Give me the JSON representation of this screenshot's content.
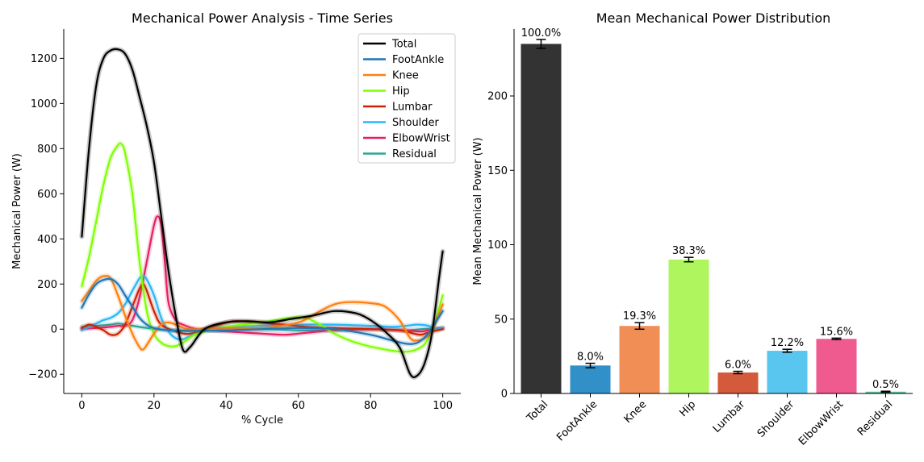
{
  "chart_data": [
    {
      "type": "line",
      "title": "Mechanical Power Analysis - Time Series",
      "xlabel": "% Cycle",
      "ylabel": "Mechanical Power (W)",
      "xlim": [
        -5,
        105
      ],
      "ylim": [
        -285,
        1330
      ],
      "xticks": [
        0,
        20,
        40,
        60,
        80,
        100
      ],
      "yticks": [
        -200,
        0,
        200,
        400,
        600,
        800,
        1000,
        1200
      ],
      "ytick_labels": [
        "−200",
        "0",
        "200",
        "400",
        "600",
        "800",
        "1000",
        "1200"
      ],
      "legend_position": "top-right",
      "series": [
        {
          "name": "Total",
          "color": "#000000",
          "points": [
            [
              0,
              410
            ],
            [
              2,
              800
            ],
            [
              4,
              1080
            ],
            [
              6,
              1200
            ],
            [
              8,
              1235
            ],
            [
              10,
              1240
            ],
            [
              12,
              1220
            ],
            [
              14,
              1150
            ],
            [
              16,
              1030
            ],
            [
              18,
              900
            ],
            [
              20,
              740
            ],
            [
              22,
              500
            ],
            [
              24,
              260
            ],
            [
              26,
              60
            ],
            [
              28,
              -90
            ],
            [
              30,
              -80
            ],
            [
              34,
              0
            ],
            [
              40,
              30
            ],
            [
              46,
              35
            ],
            [
              52,
              30
            ],
            [
              58,
              45
            ],
            [
              64,
              60
            ],
            [
              70,
              80
            ],
            [
              76,
              70
            ],
            [
              80,
              40
            ],
            [
              84,
              -10
            ],
            [
              88,
              -80
            ],
            [
              91,
              -200
            ],
            [
              93,
              -205
            ],
            [
              95,
              -150
            ],
            [
              97,
              -20
            ],
            [
              99,
              230
            ],
            [
              100,
              345
            ]
          ]
        },
        {
          "name": "FootAnkle",
          "color": "#1f77b4",
          "points": [
            [
              0,
              95
            ],
            [
              2,
              155
            ],
            [
              4,
              200
            ],
            [
              6,
              218
            ],
            [
              8,
              222
            ],
            [
              10,
              200
            ],
            [
              12,
              150
            ],
            [
              14,
              100
            ],
            [
              16,
              50
            ],
            [
              18,
              20
            ],
            [
              20,
              5
            ],
            [
              24,
              -5
            ],
            [
              30,
              -8
            ],
            [
              40,
              -5
            ],
            [
              50,
              0
            ],
            [
              60,
              5
            ],
            [
              70,
              0
            ],
            [
              80,
              -25
            ],
            [
              86,
              -50
            ],
            [
              90,
              -65
            ],
            [
              93,
              -60
            ],
            [
              96,
              -20
            ],
            [
              98,
              30
            ],
            [
              100,
              80
            ]
          ]
        },
        {
          "name": "Knee",
          "color": "#ff7f0e",
          "points": [
            [
              0,
              125
            ],
            [
              2,
              170
            ],
            [
              4,
              215
            ],
            [
              6,
              235
            ],
            [
              8,
              225
            ],
            [
              10,
              150
            ],
            [
              12,
              60
            ],
            [
              14,
              -20
            ],
            [
              16,
              -80
            ],
            [
              17,
              -90
            ],
            [
              18,
              -70
            ],
            [
              20,
              -20
            ],
            [
              22,
              20
            ],
            [
              24,
              30
            ],
            [
              26,
              20
            ],
            [
              30,
              0
            ],
            [
              40,
              5
            ],
            [
              50,
              5
            ],
            [
              60,
              30
            ],
            [
              66,
              80
            ],
            [
              70,
              110
            ],
            [
              74,
              120
            ],
            [
              80,
              115
            ],
            [
              84,
              100
            ],
            [
              88,
              40
            ],
            [
              91,
              -40
            ],
            [
              93,
              -50
            ],
            [
              95,
              -40
            ],
            [
              97,
              -10
            ],
            [
              100,
              110
            ]
          ]
        },
        {
          "name": "Hip",
          "color": "#7fff00",
          "points": [
            [
              0,
              190
            ],
            [
              2,
              320
            ],
            [
              4,
              480
            ],
            [
              6,
              640
            ],
            [
              8,
              760
            ],
            [
              10,
              815
            ],
            [
              11,
              820
            ],
            [
              12,
              780
            ],
            [
              14,
              600
            ],
            [
              16,
              300
            ],
            [
              18,
              80
            ],
            [
              20,
              -20
            ],
            [
              22,
              -60
            ],
            [
              24,
              -75
            ],
            [
              26,
              -75
            ],
            [
              28,
              -60
            ],
            [
              32,
              -20
            ],
            [
              40,
              10
            ],
            [
              50,
              30
            ],
            [
              58,
              50
            ],
            [
              62,
              50
            ],
            [
              66,
              20
            ],
            [
              70,
              -20
            ],
            [
              76,
              -60
            ],
            [
              84,
              -90
            ],
            [
              90,
              -100
            ],
            [
              94,
              -80
            ],
            [
              96,
              -40
            ],
            [
              98,
              40
            ],
            [
              100,
              150
            ]
          ]
        },
        {
          "name": "Lumbar",
          "color": "#cc2200",
          "points": [
            [
              0,
              5
            ],
            [
              2,
              20
            ],
            [
              4,
              10
            ],
            [
              6,
              -5
            ],
            [
              8,
              -25
            ],
            [
              10,
              -20
            ],
            [
              12,
              20
            ],
            [
              14,
              100
            ],
            [
              16,
              180
            ],
            [
              17,
              200
            ],
            [
              18,
              170
            ],
            [
              20,
              80
            ],
            [
              22,
              20
            ],
            [
              26,
              -10
            ],
            [
              30,
              -20
            ],
            [
              36,
              10
            ],
            [
              42,
              35
            ],
            [
              48,
              30
            ],
            [
              56,
              20
            ],
            [
              62,
              10
            ],
            [
              70,
              5
            ],
            [
              80,
              0
            ],
            [
              88,
              -5
            ],
            [
              92,
              -20
            ],
            [
              94,
              -25
            ],
            [
              96,
              -15
            ],
            [
              100,
              0
            ]
          ]
        },
        {
          "name": "Shoulder",
          "color": "#29b6f6",
          "points": [
            [
              0,
              -5
            ],
            [
              2,
              10
            ],
            [
              4,
              25
            ],
            [
              6,
              40
            ],
            [
              8,
              50
            ],
            [
              10,
              70
            ],
            [
              12,
              110
            ],
            [
              14,
              170
            ],
            [
              16,
              225
            ],
            [
              17,
              235
            ],
            [
              18,
              220
            ],
            [
              20,
              150
            ],
            [
              22,
              50
            ],
            [
              24,
              -10
            ],
            [
              26,
              -40
            ],
            [
              28,
              -45
            ],
            [
              30,
              -30
            ],
            [
              34,
              0
            ],
            [
              40,
              10
            ],
            [
              50,
              15
            ],
            [
              60,
              20
            ],
            [
              70,
              20
            ],
            [
              80,
              15
            ],
            [
              86,
              10
            ],
            [
              90,
              15
            ],
            [
              93,
              20
            ],
            [
              96,
              15
            ],
            [
              98,
              0
            ],
            [
              100,
              5
            ]
          ]
        },
        {
          "name": "ElbowWrist",
          "color": "#e91e63",
          "points": [
            [
              0,
              0
            ],
            [
              4,
              5
            ],
            [
              8,
              10
            ],
            [
              10,
              15
            ],
            [
              12,
              15
            ],
            [
              14,
              40
            ],
            [
              16,
              140
            ],
            [
              18,
              300
            ],
            [
              20,
              460
            ],
            [
              21,
              500
            ],
            [
              22,
              460
            ],
            [
              23,
              300
            ],
            [
              24,
              120
            ],
            [
              26,
              40
            ],
            [
              28,
              20
            ],
            [
              32,
              0
            ],
            [
              40,
              -10
            ],
            [
              50,
              -20
            ],
            [
              56,
              -25
            ],
            [
              60,
              -20
            ],
            [
              66,
              -10
            ],
            [
              70,
              -5
            ],
            [
              80,
              0
            ],
            [
              88,
              -5
            ],
            [
              94,
              -10
            ],
            [
              96,
              -5
            ],
            [
              100,
              5
            ]
          ]
        },
        {
          "name": "Residual",
          "color": "#26a69a",
          "points": [
            [
              0,
              10
            ],
            [
              4,
              15
            ],
            [
              8,
              20
            ],
            [
              10,
              25
            ],
            [
              12,
              20
            ],
            [
              14,
              15
            ],
            [
              18,
              5
            ],
            [
              24,
              -5
            ],
            [
              30,
              -5
            ],
            [
              40,
              -5
            ],
            [
              50,
              0
            ],
            [
              60,
              -5
            ],
            [
              70,
              -5
            ],
            [
              80,
              0
            ],
            [
              90,
              -5
            ],
            [
              94,
              0
            ],
            [
              100,
              5
            ]
          ]
        }
      ]
    },
    {
      "type": "bar",
      "title": "Mean Mechanical Power Distribution",
      "xlabel": "",
      "ylabel": "Mean Mechanical Power (W)",
      "ylim": [
        0,
        245
      ],
      "yticks": [
        0,
        50,
        100,
        150,
        200
      ],
      "categories": [
        "Total",
        "FootAnkle",
        "Knee",
        "Hip",
        "Lumbar",
        "Shoulder",
        "ElbowWrist",
        "Residual"
      ],
      "values": [
        235,
        18.8,
        45.4,
        90.0,
        14.1,
        28.7,
        36.7,
        1.2
      ],
      "errors": [
        3,
        1.5,
        2.2,
        1.5,
        0.8,
        1.0,
        0.5,
        0.3
      ],
      "bar_labels": [
        "100.0%",
        "8.0%",
        "19.3%",
        "38.3%",
        "6.0%",
        "12.2%",
        "15.6%",
        "0.5%"
      ],
      "colors": [
        "#333333",
        "#3290c9",
        "#f08e55",
        "#aef55e",
        "#d45a3c",
        "#59c6f0",
        "#ef5a8f",
        "#5cc0a4"
      ]
    }
  ]
}
